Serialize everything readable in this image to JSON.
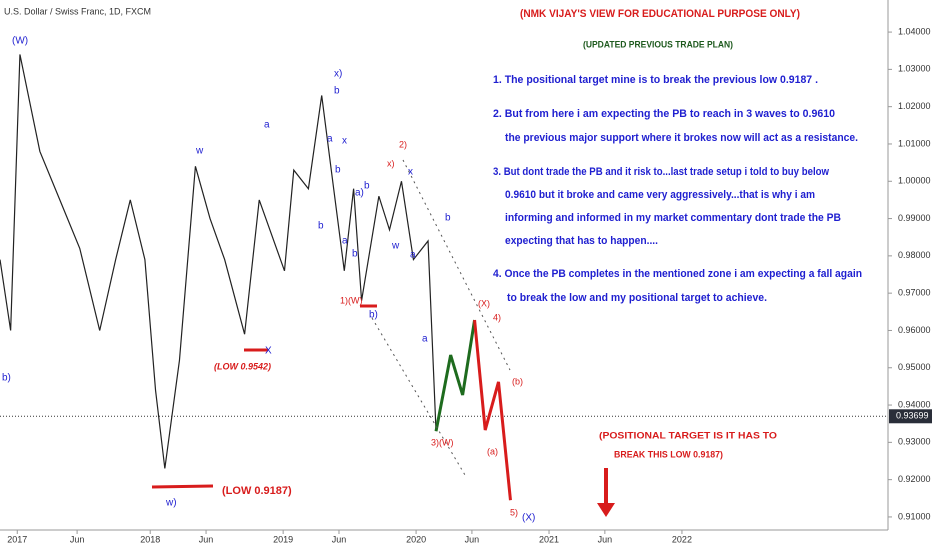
{
  "chart_data": {
    "type": "line",
    "title": "U.S. Dollar / Swiss Franc, 1D, FXCM",
    "series": [
      {
        "color": "#222222",
        "x": [
          2016.87,
          2016.95,
          2017.02,
          2017.17,
          2017.32,
          2017.47,
          2017.62,
          2017.74,
          2017.85,
          2017.96,
          2018.04,
          2018.11,
          2018.22,
          2018.34,
          2018.45,
          2018.56,
          2018.71,
          2018.82,
          2019.01,
          2019.08,
          2019.19,
          2019.29,
          2019.38,
          2019.46,
          2019.53,
          2019.59,
          2019.72,
          2019.8,
          2019.89,
          2019.98,
          2020.09,
          2020.15
        ],
        "values": [
          0.979,
          0.96,
          1.034,
          1.008,
          0.995,
          0.982,
          0.96,
          0.979,
          0.995,
          0.979,
          0.944,
          0.923,
          0.952,
          1.004,
          0.99,
          0.979,
          0.959,
          0.995,
          0.976,
          1.003,
          0.998,
          1.023,
          0.998,
          0.976,
          0.998,
          0.968,
          0.996,
          0.987,
          1.0,
          0.979,
          0.984,
          0.933
        ]
      },
      {
        "color": "#1e6b1e",
        "x": [
          2020.15,
          2020.26,
          2020.35,
          2020.44
        ],
        "values": [
          0.933,
          0.9534,
          0.9427,
          0.9628
        ]
      },
      {
        "color": "#d81c1c",
        "x": [
          2020.44,
          2020.52,
          2020.62,
          2020.71
        ],
        "values": [
          0.9628,
          0.9333,
          0.9462,
          0.9145
        ]
      }
    ],
    "xlim": [
      2016.87,
      2023.55
    ],
    "xticks": [
      {
        "value": 2017,
        "label": "2017"
      },
      {
        "value": 2017.45,
        "label": "Jun"
      },
      {
        "value": 2018,
        "label": "2018"
      },
      {
        "value": 2018.42,
        "label": "Jun"
      },
      {
        "value": 2019,
        "label": "2019"
      },
      {
        "value": 2019.42,
        "label": "Jun"
      },
      {
        "value": 2020,
        "label": "2020"
      },
      {
        "value": 2020.42,
        "label": "Jun"
      },
      {
        "value": 2021,
        "label": "2021"
      },
      {
        "value": 2021.42,
        "label": "Jun"
      },
      {
        "value": 2022,
        "label": "2022"
      }
    ],
    "ylim": [
      0.9065,
      1.0486
    ],
    "yticks": [
      {
        "value": 0.91,
        "label": "0.91000"
      },
      {
        "value": 0.92,
        "label": "0.92000"
      },
      {
        "value": 0.93,
        "label": "0.93000"
      },
      {
        "value": 0.94,
        "label": "0.94000"
      },
      {
        "value": 0.95,
        "label": "0.95000"
      },
      {
        "value": 0.96,
        "label": "0.96000"
      },
      {
        "value": 0.97,
        "label": "0.97000"
      },
      {
        "value": 0.98,
        "label": "0.98000"
      },
      {
        "value": 0.99,
        "label": "0.99000"
      },
      {
        "value": 1.0,
        "label": "1.00000"
      },
      {
        "value": 1.01,
        "label": "1.01000"
      },
      {
        "value": 1.02,
        "label": "1.02000"
      },
      {
        "value": 1.03,
        "label": "1.03000"
      },
      {
        "value": 1.04,
        "label": "1.04000"
      }
    ],
    "last_price": {
      "value": 0.93699,
      "label": "0.93699"
    }
  },
  "wave_labels": [
    "(W)",
    "x)",
    "b",
    "a",
    "w",
    "a",
    "x",
    "b",
    "a)",
    "b",
    "b",
    "a",
    "b",
    "w",
    "a",
    "b",
    "2)",
    "x)",
    "x",
    "1)(W)",
    "b)",
    "(X)",
    "4)",
    "a",
    "(b)",
    "3)(W)",
    "(a)",
    "5)",
    "(X)",
    "w)",
    "X",
    "b)"
  ],
  "level_labels": [
    "(LOW 0.9187)",
    "(LOW 0.9542)"
  ],
  "notes": {
    "heading": "(NMK VIJAY'S VIEW FOR EDUCATIONAL PURPOSE ONLY)",
    "subheading": "(UPDATED PREVIOUS TRADE PLAN)",
    "lines": [
      "1. The positional target mine is to break the previous low 0.9187 .",
      "2. But from here i am expecting the PB to reach in 3 waves to  0.9610",
      "the previous major support where it brokes now will act as a resistance.",
      "3. But dont trade the PB and it risk to...last trade setup i told to buy below",
      "0.9610 but it broke and came very aggressively...that is why i am",
      "informing and informed in my market commentary dont trade the PB",
      "expecting that has to happen....",
      "4. Once the PB completes in the mentioned zone i am expecting a fall again",
      "to break the low and my positional target to achieve."
    ],
    "target": [
      "(POSITIONAL TARGET IS IT HAS TO",
      "BREAK THIS LOW 0.9187)"
    ]
  }
}
